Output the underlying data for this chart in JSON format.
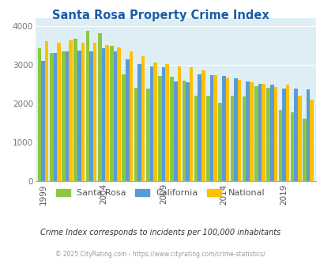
{
  "title": "Santa Rosa Property Crime Index",
  "years": [
    1999,
    2000,
    2001,
    2002,
    2003,
    2004,
    2005,
    2006,
    2007,
    2008,
    2009,
    2010,
    2011,
    2012,
    2013,
    2014,
    2015,
    2016,
    2017,
    2018,
    2019,
    2020,
    2021
  ],
  "santa_rosa": [
    3430,
    3310,
    3340,
    3680,
    3870,
    3810,
    3490,
    2760,
    2420,
    2390,
    2720,
    2700,
    2600,
    2200,
    2210,
    2030,
    2200,
    2180,
    2450,
    2420,
    1840,
    1770,
    1620
  ],
  "california": [
    3110,
    3300,
    3340,
    3360,
    3350,
    3420,
    3340,
    3150,
    3030,
    2960,
    2940,
    2570,
    2560,
    2760,
    2740,
    2720,
    2660,
    2580,
    2510,
    2490,
    2380,
    2390,
    2360
  ],
  "national": [
    3620,
    3570,
    3640,
    3570,
    3570,
    3510,
    3440,
    3340,
    3230,
    3060,
    3030,
    2950,
    2940,
    2860,
    2730,
    2680,
    2620,
    2560,
    2510,
    2440,
    2490,
    2200,
    2100
  ],
  "bar_color_sr": "#8dc63f",
  "bar_color_ca": "#5b9bd5",
  "bar_color_na": "#ffc000",
  "plot_bg": "#ddeef5",
  "ylim": [
    0,
    4200
  ],
  "yticks": [
    0,
    1000,
    2000,
    3000,
    4000
  ],
  "subtitle": "Crime Index corresponds to incidents per 100,000 inhabitants",
  "footer": "© 2025 CityRating.com - https://www.cityrating.com/crime-statistics/",
  "legend_labels": [
    "Santa Rosa",
    "California",
    "National"
  ],
  "xtick_years": [
    1999,
    2004,
    2009,
    2014,
    2019
  ]
}
